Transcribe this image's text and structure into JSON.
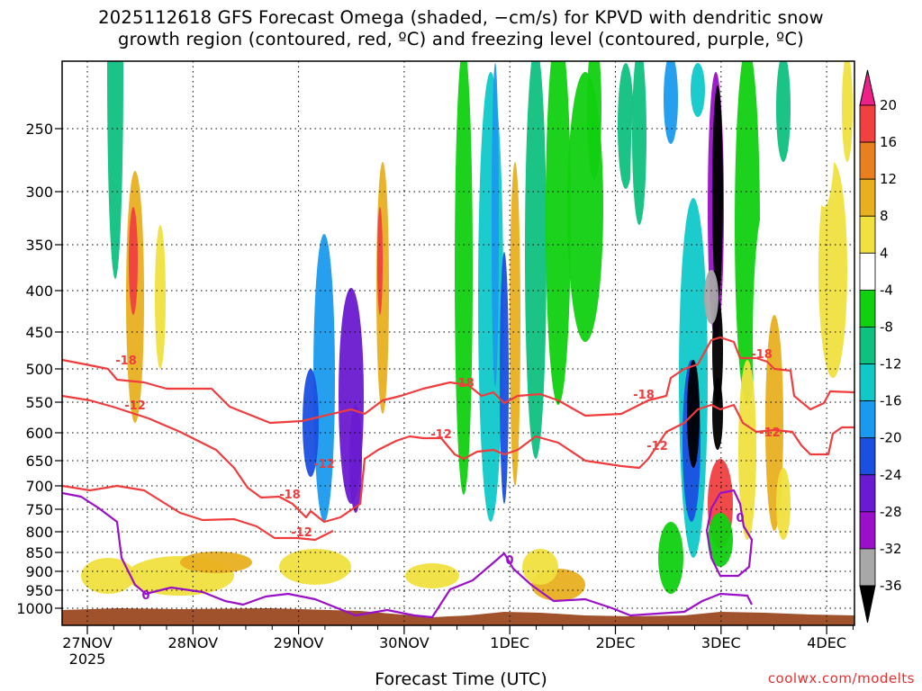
{
  "title_line1": "2025112618 GFS Forecast Omega (shaded, −cm/s) for KPVD with dendritic snow",
  "title_line2": "growth region (contoured, red, ºC) and freezing level (contoured, purple, ºC)",
  "xlabel": "Forecast Time (UTC)",
  "watermark": "coolwx.com/modelts",
  "colors": {
    "dendritic_contour": "#f03c3c",
    "freezing_contour": "#9a10c8",
    "terrain": "#a0522d"
  },
  "chart_data": {
    "type": "heatmap",
    "y_axis": {
      "quantity": "pressure",
      "direction": "inverted",
      "ticks": [
        250,
        300,
        350,
        400,
        450,
        500,
        550,
        600,
        650,
        700,
        750,
        800,
        850,
        900,
        950,
        1000
      ],
      "range": [
        1020,
        200
      ]
    },
    "x_axis": {
      "range": [
        "2025-11-26 18Z",
        "2025-12-04 12Z"
      ],
      "ticks": [
        {
          "label": "27NOV",
          "sublabel": "2025",
          "day": "2025-11-27"
        },
        {
          "label": "28NOV",
          "day": "2025-11-28"
        },
        {
          "label": "29NOV",
          "day": "2025-11-29"
        },
        {
          "label": "30NOV",
          "day": "2025-11-30"
        },
        {
          "label": "1DEC",
          "day": "2025-12-01"
        },
        {
          "label": "2DEC",
          "day": "2025-12-02"
        },
        {
          "label": "3DEC",
          "day": "2025-12-03"
        },
        {
          "label": "4DEC",
          "day": "2025-12-04"
        }
      ]
    },
    "colorbar": {
      "levels": [
        -36,
        -32,
        -28,
        -24,
        -20,
        -16,
        -12,
        -8,
        -4,
        4,
        8,
        12,
        16,
        20
      ],
      "colors": [
        "#000000",
        "#a8a8a8",
        "#9a10c8",
        "#6a1ad0",
        "#1a4fe0",
        "#1a9aee",
        "#10c8c8",
        "#10c080",
        "#10d010",
        "#ffffff",
        "#f0e040",
        "#e8b020",
        "#e88020",
        "#f04040",
        "#f0208a"
      ]
    },
    "contours": [
      {
        "variable": "dendritic snow growth region",
        "labels": [
          "-18",
          "-18",
          "-18",
          "-18",
          "-18",
          "-12",
          "-12",
          "-12",
          "-12",
          "-12",
          "-12"
        ]
      },
      {
        "variable": "freezing level",
        "labels": [
          "0",
          "0",
          "0"
        ]
      }
    ],
    "grid": true
  }
}
